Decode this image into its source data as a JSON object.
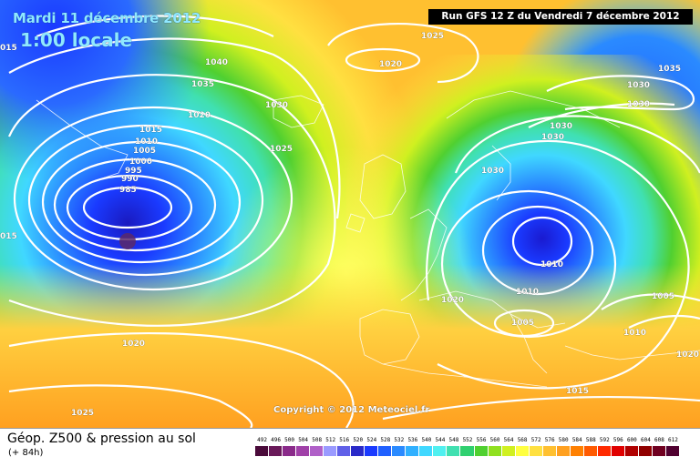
{
  "header": {
    "date": "Mardi 11 décembre 2012",
    "time": "1:00 locale",
    "run": "Run GFS 12 Z du Vendredi 7 décembre 2012"
  },
  "copyright": "Copyright © 2012 Meteociel.fr",
  "legend": {
    "title": "Géop. Z500 & pression au sol",
    "subtitle": "(+ 84h)",
    "values": [
      "492",
      "496",
      "500",
      "504",
      "508",
      "512",
      "516",
      "520",
      "524",
      "528",
      "532",
      "536",
      "540",
      "544",
      "548",
      "552",
      "556",
      "560",
      "564",
      "568",
      "572",
      "576",
      "580",
      "584",
      "588",
      "592",
      "596",
      "600",
      "604",
      "608",
      "612"
    ],
    "colors": [
      "#4a0a3a",
      "#6a1a5a",
      "#8a2a8a",
      "#a040a8",
      "#b060c8",
      "#9a9aff",
      "#6060e8",
      "#2a2ac8",
      "#1a3aff",
      "#2060ff",
      "#2a8aff",
      "#30b0ff",
      "#40d8ff",
      "#50f0f0",
      "#40e0b0",
      "#30d070",
      "#50d030",
      "#90e020",
      "#d0f020",
      "#ffff40",
      "#ffe040",
      "#ffc030",
      "#ffa020",
      "#ff8000",
      "#ff5a00",
      "#ff2a00",
      "#e00000",
      "#b00000",
      "#900000",
      "#700020",
      "#500030"
    ]
  },
  "isobars": [
    {
      "label": "015",
      "pos": "top-left edge"
    },
    {
      "label": "1040"
    },
    {
      "label": "1035"
    },
    {
      "label": "1020"
    },
    {
      "label": "1015"
    },
    {
      "label": "1010"
    },
    {
      "label": "1005"
    },
    {
      "label": "1000"
    },
    {
      "label": "995"
    },
    {
      "label": "990"
    },
    {
      "label": "985"
    },
    {
      "label": "015",
      "pos": "left edge"
    },
    {
      "label": "1025",
      "pos": "top"
    },
    {
      "label": "1020",
      "pos": "top center"
    },
    {
      "label": "1030",
      "pos": "center-left"
    },
    {
      "label": "1025",
      "pos": "center-left"
    },
    {
      "label": "1030",
      "pos": "scandinavia"
    },
    {
      "label": "1030",
      "pos": "scandinavia2"
    },
    {
      "label": "1030",
      "pos": "norway"
    },
    {
      "label": "1035",
      "pos": "top-right"
    },
    {
      "label": "1030",
      "pos": "top-right2"
    },
    {
      "label": "1030",
      "pos": "top-right3"
    },
    {
      "label": "1010",
      "pos": "europe low"
    },
    {
      "label": "1010",
      "pos": "europe low2"
    },
    {
      "label": "1005",
      "pos": "italy"
    },
    {
      "label": "1020",
      "pos": "biscay"
    },
    {
      "label": "1005",
      "pos": "east"
    },
    {
      "label": "1010",
      "pos": "east2"
    },
    {
      "label": "1020",
      "pos": "atlantic"
    },
    {
      "label": "1025",
      "pos": "bottom-left"
    },
    {
      "label": "1015",
      "pos": "mediterranean"
    },
    {
      "label": "1020",
      "pos": "east edge"
    }
  ]
}
